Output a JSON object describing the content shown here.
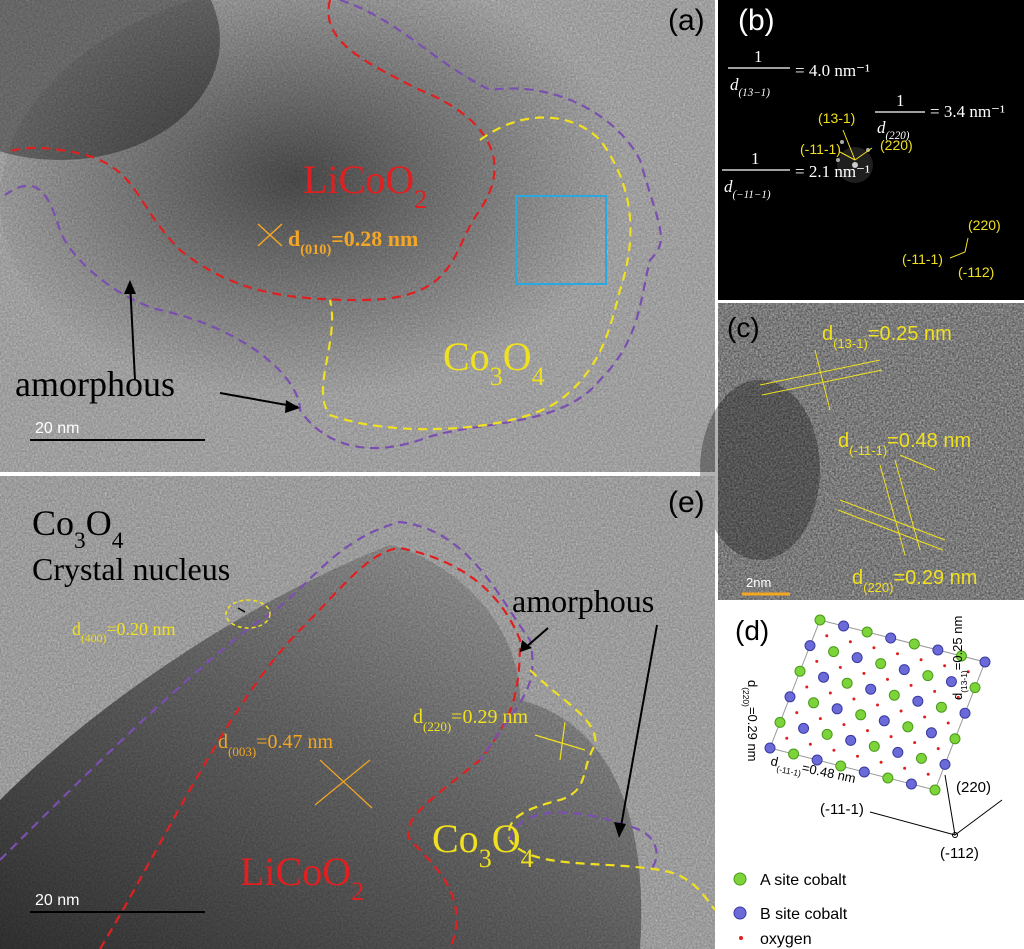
{
  "panel_a": {
    "tag": "(a)",
    "labels": [
      [
        "LiCoO",
        "2"
      ],
      [
        "d",
        "(010)",
        "=0.28 nm"
      ],
      [
        "Co",
        "3",
        "O",
        "4"
      ],
      [
        "amorphous"
      ]
    ],
    "scale": "20 nm"
  },
  "panel_b": {
    "tag": "(b)",
    "equations": [
      {
        "num": "1",
        "den": [
          "d",
          "(13−1)"
        ],
        "rhs": "= 4.0 nm⁻¹"
      },
      {
        "num": "1",
        "den": [
          "d",
          "(220)"
        ],
        "rhs": "= 3.4 nm⁻¹"
      },
      {
        "num": "1",
        "den": [
          "d",
          "(−11−1)"
        ],
        "rhs": "= 2.1 nm⁻¹"
      }
    ],
    "spot_labels": [
      "(13-1)",
      "(220)",
      "(-11-1)",
      "(220)",
      "(-11-1)",
      "(-112)"
    ]
  },
  "panel_c": {
    "tag": "(c)",
    "labels": [
      [
        "d",
        "(13-1)",
        "=0.25 nm"
      ],
      [
        "d",
        "(-11-1)",
        "=0.48 nm"
      ],
      [
        "d",
        "(220)",
        "=0.29 nm"
      ]
    ],
    "scale": "2nm"
  },
  "panel_d": {
    "tag": "(d)",
    "labels": [
      [
        "d",
        "(13-1)",
        "=0.25 nm"
      ],
      [
        "d",
        "(220)",
        "=0.29 nm"
      ],
      [
        "d",
        "(-11-1)",
        "=0.48 nm"
      ]
    ],
    "axes": [
      "(220)",
      "(-11-1)",
      "(-112)"
    ],
    "legend": [
      "A site cobalt",
      "B site cobalt",
      "oxygen"
    ]
  },
  "panel_e": {
    "tag": "(e)",
    "labels": [
      [
        "Co",
        "3",
        "O",
        "4"
      ],
      [
        "Crystal nucleus"
      ],
      [
        "d",
        "(400)",
        "=0.20 nm"
      ],
      [
        "amorphous"
      ],
      [
        "d",
        "(220)",
        "=0.29 nm"
      ],
      [
        "d",
        "(003)",
        "=0.47 nm"
      ],
      [
        "Co",
        "3",
        "O",
        "4"
      ],
      [
        "LiCoO",
        "2"
      ]
    ],
    "scale": "20 nm"
  }
}
